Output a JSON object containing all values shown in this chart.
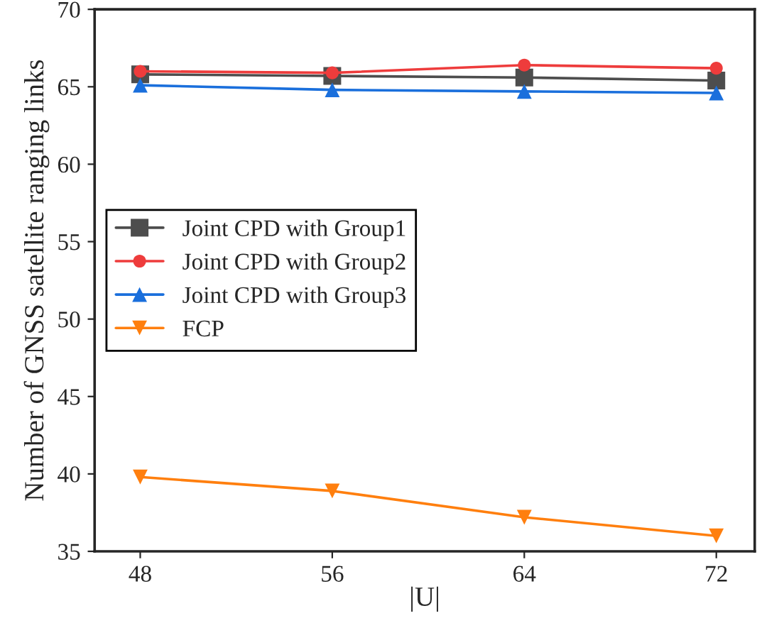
{
  "chart_data": {
    "type": "line",
    "xlabel": "|U|",
    "ylabel": "Number of GNSS satellite ranging links",
    "x": [
      48,
      56,
      64,
      72
    ],
    "xlim": [
      46.1,
      73.6
    ],
    "xticks": [
      48,
      56,
      64,
      72
    ],
    "ylim": [
      35,
      70
    ],
    "yticks": [
      35,
      40,
      45,
      50,
      55,
      60,
      65,
      70
    ],
    "grid": false,
    "legend": "center left",
    "series": [
      {
        "name": "Joint CPD with Group1",
        "color": "#4d4d4d",
        "marker": "square",
        "values": [
          65.8,
          65.7,
          65.6,
          65.4
        ]
      },
      {
        "name": "Joint CPD with Group2",
        "color": "#ee3c3c",
        "marker": "circle",
        "values": [
          66.0,
          65.9,
          66.4,
          66.2
        ]
      },
      {
        "name": "Joint CPD with Group3",
        "color": "#1a6fdc",
        "marker": "triangle",
        "values": [
          65.1,
          64.8,
          64.7,
          64.6
        ]
      },
      {
        "name": "FCP",
        "color": "#ff7f0e",
        "marker": "triangle_down",
        "values": [
          39.8,
          38.9,
          37.2,
          36.0
        ]
      }
    ]
  }
}
